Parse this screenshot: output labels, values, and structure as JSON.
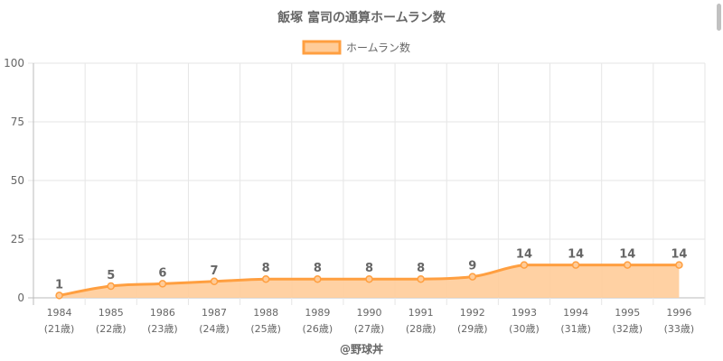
{
  "chart_data": {
    "type": "line",
    "title": "飯塚 富司の通算ホームラン数",
    "categories": [
      "1984",
      "1985",
      "1986",
      "1987",
      "1988",
      "1989",
      "1990",
      "1991",
      "1992",
      "1993",
      "1994",
      "1995",
      "1996"
    ],
    "sublabels": [
      "(21歳)",
      "(22歳)",
      "(23歳)",
      "(24歳)",
      "(25歳)",
      "(26歳)",
      "(27歳)",
      "(28歳)",
      "(29歳)",
      "(30歳)",
      "(31歳)",
      "(32歳)",
      "(33歳)"
    ],
    "series": [
      {
        "name": "ホームラン数",
        "values": [
          1,
          5,
          6,
          7,
          8,
          8,
          8,
          8,
          9,
          14,
          14,
          14,
          14
        ]
      }
    ],
    "ylim": [
      0,
      100
    ],
    "yticks": [
      0,
      25,
      50,
      75,
      100
    ],
    "grid": true,
    "fill": true,
    "legend": "top",
    "colors": {
      "line": "#ff9f40",
      "fill": "#ffcc99",
      "grid": "#e6e6e6",
      "text": "#666666"
    },
    "footer": "@野球丼"
  }
}
